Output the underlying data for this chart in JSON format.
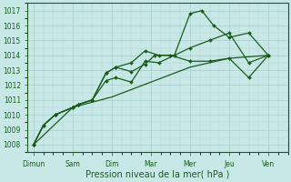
{
  "xlabel": "Pression niveau de la mer( hPa )",
  "xtick_labels": [
    "Dimun",
    "Sam",
    "Dim",
    "Mar",
    "Mer",
    "Jeu",
    "Ven"
  ],
  "xtick_positions": [
    0,
    1,
    2,
    3,
    4,
    5,
    6
  ],
  "ylim": [
    1007.5,
    1017.5
  ],
  "yticks": [
    1008,
    1009,
    1010,
    1011,
    1012,
    1013,
    1014,
    1015,
    1016,
    1017
  ],
  "background_color": "#c8e8e8",
  "grid_color": "#a8cccc",
  "line_color": "#1a5c1a",
  "series": [
    {
      "x": [
        0,
        0.25,
        0.55,
        1.0,
        1.15,
        1.5,
        1.85,
        2.1,
        2.5,
        2.85,
        3.1,
        3.5,
        4.0,
        4.5,
        5.0,
        5.5,
        6.0
      ],
      "y": [
        1008.0,
        1009.3,
        1010.0,
        1010.5,
        1010.7,
        1011.0,
        1012.8,
        1013.2,
        1012.9,
        1013.4,
        1014.0,
        1014.0,
        1013.6,
        1013.6,
        1013.8,
        1012.5,
        1014.0
      ],
      "marker": true
    },
    {
      "x": [
        0,
        0.25,
        0.55,
        1.0,
        1.15,
        1.5,
        1.85,
        2.1,
        2.5,
        2.85,
        3.2,
        3.6,
        4.0,
        4.3,
        4.6,
        5.0,
        5.5,
        6.0
      ],
      "y": [
        1008.0,
        1009.3,
        1010.0,
        1010.5,
        1010.7,
        1011.0,
        1012.8,
        1013.2,
        1013.5,
        1014.3,
        1014.0,
        1014.0,
        1016.8,
        1017.0,
        1016.0,
        1015.2,
        1015.5,
        1014.0
      ],
      "marker": true
    },
    {
      "x": [
        0,
        0.25,
        0.55,
        1.0,
        1.15,
        1.5,
        1.85,
        2.1,
        2.5,
        2.85,
        3.2,
        4.0,
        4.5,
        5.0,
        5.5,
        6.0
      ],
      "y": [
        1008.0,
        1009.3,
        1010.0,
        1010.5,
        1010.7,
        1011.0,
        1012.3,
        1012.5,
        1012.2,
        1013.6,
        1013.5,
        1014.5,
        1015.0,
        1015.5,
        1013.5,
        1014.0
      ],
      "marker": true
    },
    {
      "x": [
        0,
        1.0,
        2.0,
        3.0,
        4.0,
        5.0,
        6.0
      ],
      "y": [
        1008.0,
        1010.5,
        1011.2,
        1012.2,
        1013.2,
        1013.8,
        1014.0
      ],
      "marker": false
    }
  ]
}
